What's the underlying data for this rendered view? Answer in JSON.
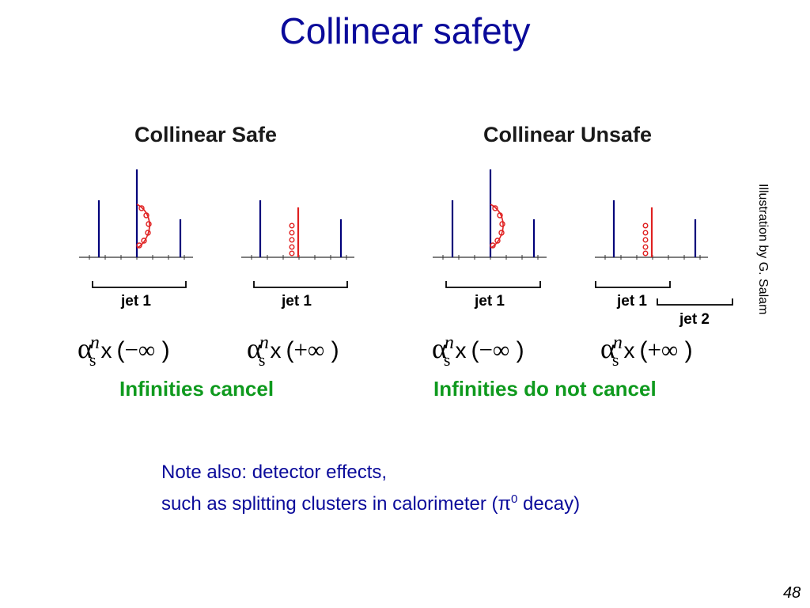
{
  "slide": {
    "title": "Collinear safety",
    "page_number": "48",
    "credit": "Illustration by G. Salam"
  },
  "safe": {
    "title": "Collinear Safe",
    "result": "Infinities cancel",
    "panels": [
      {
        "jet_labels": [
          "jet 1"
        ],
        "formula": {
          "alpha": "α",
          "power": "n",
          "subscript": "s",
          "times": "x",
          "sign": "−",
          "infinity": "∞"
        }
      },
      {
        "jet_labels": [
          "jet 1"
        ],
        "formula": {
          "alpha": "α",
          "power": "n",
          "subscript": "s",
          "times": "x",
          "sign": "+",
          "infinity": "∞"
        }
      }
    ]
  },
  "unsafe": {
    "title": "Collinear Unsafe",
    "result": "Infinities do not cancel",
    "panels": [
      {
        "jet_labels": [
          "jet 1"
        ],
        "formula": {
          "alpha": "α",
          "power": "n",
          "subscript": "s",
          "times": "x",
          "sign": "−",
          "infinity": "∞"
        }
      },
      {
        "jet_labels": [
          "jet 1",
          "jet 2"
        ],
        "formula": {
          "alpha": "α",
          "power": "n",
          "subscript": "s",
          "times": "x",
          "sign": "+",
          "infinity": "∞"
        }
      }
    ]
  },
  "note": {
    "line1": "Note also: detector effects,",
    "line2_prefix": "such as splitting clusters in calorimeter (",
    "pi": "π",
    "pi_sup": "0",
    "line2_suffix": " decay)"
  },
  "colors": {
    "title": "#0a0a9a",
    "particle_line": "#00007a",
    "gluon": "#e02020",
    "result": "#0f9a1e"
  }
}
